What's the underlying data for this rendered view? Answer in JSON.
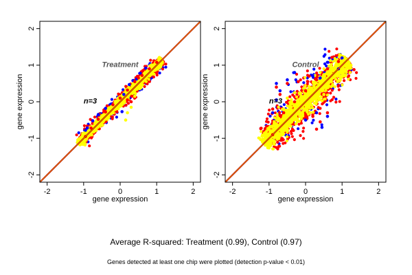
{
  "caption": "Average R-squared: Treatment (0.99), Control (0.97)",
  "footnote": "Genes detected at least one chip were plotted (detection p-value < 0.01)",
  "colors": {
    "background": "#ffffff",
    "frame": "#000000",
    "diagonal_dark": "#a00000",
    "diagonal_orange": "#ff8c00",
    "point_blue": "#0000ff",
    "point_red": "#ff0000",
    "point_yellow": "#ffff00"
  },
  "chart_data": [
    {
      "type": "scatter",
      "title": "Treatment",
      "annotation": "n=3",
      "xlabel": "gene expression",
      "ylabel": "gene expression",
      "xlim": [
        -2.2,
        2.2
      ],
      "ylim": [
        -2.2,
        2.2
      ],
      "xticks": [
        -2,
        -1,
        0,
        1,
        2
      ],
      "yticks": [
        -2,
        -1,
        0,
        1,
        2
      ],
      "reference_line": "y = x",
      "grid": false,
      "r_squared": 0.99,
      "series": [
        {
          "color_name": "blue",
          "values": [
            [
              -0.9,
              -0.72
            ],
            [
              -0.75,
              -0.52
            ],
            [
              -0.6,
              -0.35
            ],
            [
              -0.4,
              -0.18
            ],
            [
              0.35,
              0.58
            ],
            [
              0.55,
              0.78
            ],
            [
              0.7,
              0.92
            ],
            [
              0.45,
              0.62
            ],
            [
              -0.95,
              -0.78
            ],
            [
              0.05,
              -0.27
            ],
            [
              0.1,
              0.2
            ],
            [
              0.25,
              0.47
            ]
          ]
        },
        {
          "color_name": "red",
          "values": [
            [
              -0.95,
              -0.95
            ],
            [
              -0.8,
              -0.72
            ],
            [
              -0.6,
              -0.48
            ],
            [
              -0.4,
              -0.28
            ],
            [
              -0.2,
              -0.08
            ],
            [
              0.0,
              0.1
            ],
            [
              0.2,
              0.32
            ],
            [
              0.4,
              0.55
            ],
            [
              0.6,
              0.72
            ],
            [
              0.8,
              0.9
            ],
            [
              1.0,
              1.08
            ],
            [
              0.2,
              0.05
            ],
            [
              0.3,
              0.0
            ],
            [
              0.5,
              0.65
            ],
            [
              0.62,
              0.85
            ]
          ]
        },
        {
          "color_name": "yellow",
          "values": [
            [
              -1.1,
              -1.1
            ],
            [
              -0.9,
              -0.9
            ],
            [
              -0.7,
              -0.7
            ],
            [
              -0.5,
              -0.5
            ],
            [
              -0.3,
              -0.3
            ],
            [
              -0.1,
              -0.1
            ],
            [
              0.1,
              0.1
            ],
            [
              0.3,
              0.3
            ],
            [
              0.5,
              0.5
            ],
            [
              0.7,
              0.7
            ],
            [
              0.9,
              0.9
            ],
            [
              1.1,
              1.1
            ],
            [
              0.2,
              -0.3
            ],
            [
              0.3,
              -0.15
            ],
            [
              0.15,
              -0.5
            ],
            [
              0.4,
              0.15
            ]
          ]
        }
      ]
    },
    {
      "type": "scatter",
      "title": "Control",
      "annotation": "n=3",
      "xlabel": "gene expression",
      "ylabel": "gene expression",
      "xlim": [
        -2.2,
        2.2
      ],
      "ylim": [
        -2.2,
        2.2
      ],
      "xticks": [
        -2,
        -1,
        0,
        1,
        2
      ],
      "yticks": [
        -2,
        -1,
        0,
        1,
        2
      ],
      "reference_line": "y = x",
      "grid": false,
      "r_squared": 0.97,
      "series": [
        {
          "color_name": "blue",
          "values": [
            [
              -0.8,
              0.5
            ],
            [
              -0.7,
              0.3
            ],
            [
              -0.8,
              0.05
            ],
            [
              -0.9,
              -0.3
            ],
            [
              -0.5,
              0.6
            ],
            [
              0.2,
              0.7
            ],
            [
              0.4,
              0.65
            ],
            [
              0.9,
              0.9
            ],
            [
              1.0,
              1.2
            ],
            [
              0.3,
              -0.3
            ],
            [
              0.45,
              -0.7
            ],
            [
              0.0,
              -0.5
            ],
            [
              -0.3,
              0.8
            ],
            [
              0.6,
              -0.4
            ]
          ]
        },
        {
          "color_name": "red",
          "values": [
            [
              -0.9,
              -0.9
            ],
            [
              -0.6,
              -0.3
            ],
            [
              -0.3,
              0.0
            ],
            [
              0.0,
              0.3
            ],
            [
              0.3,
              0.6
            ],
            [
              0.6,
              0.9
            ],
            [
              0.9,
              1.1
            ],
            [
              -0.8,
              0.4
            ],
            [
              -0.7,
              0.2
            ],
            [
              -0.5,
              0.5
            ],
            [
              -0.2,
              0.55
            ],
            [
              0.1,
              0.7
            ],
            [
              0.2,
              -0.4
            ],
            [
              0.4,
              -0.55
            ],
            [
              0.6,
              -0.3
            ],
            [
              -0.9,
              -0.2
            ],
            [
              0.3,
              -0.75
            ]
          ]
        },
        {
          "color_name": "yellow",
          "values": [
            [
              -1.0,
              -1.0
            ],
            [
              -0.8,
              -0.75
            ],
            [
              -0.6,
              -0.55
            ],
            [
              -0.4,
              -0.35
            ],
            [
              -0.2,
              -0.15
            ],
            [
              0.0,
              0.05
            ],
            [
              0.2,
              0.25
            ],
            [
              0.4,
              0.45
            ],
            [
              0.6,
              0.65
            ],
            [
              0.8,
              0.85
            ],
            [
              1.0,
              1.05
            ],
            [
              -0.5,
              0.1
            ],
            [
              -0.3,
              0.25
            ],
            [
              0.3,
              0.0
            ],
            [
              0.5,
              0.2
            ],
            [
              -0.6,
              -0.2
            ]
          ]
        }
      ]
    }
  ]
}
